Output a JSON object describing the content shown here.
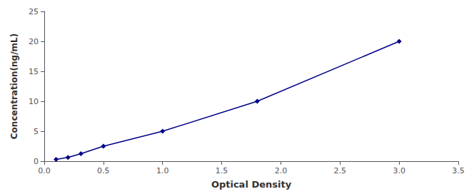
{
  "chart_data": {
    "type": "line",
    "x": [
      0.1,
      0.2,
      0.31,
      0.5,
      1.0,
      1.8,
      3.0
    ],
    "values": [
      0.31,
      0.63,
      1.25,
      2.5,
      5.0,
      10.0,
      20.0
    ],
    "color": "#00008B",
    "marker": "diamond",
    "line_style": "solid",
    "xlabel": "Optical Density",
    "ylabel": "Concentration(ng/mL)",
    "xlim": [
      0,
      3.5
    ],
    "ylim": [
      0,
      25
    ],
    "xticks": [
      {
        "value": 0,
        "label": "0.0"
      },
      0.5,
      {
        "value": 1,
        "label": "1.0"
      },
      1.5,
      {
        "value": 2,
        "label": "2.0"
      },
      2.5,
      {
        "value": 3,
        "label": "3.0"
      },
      3.5
    ],
    "yticks": [
      0,
      5,
      10,
      15,
      20,
      25
    ],
    "grid": false
  }
}
